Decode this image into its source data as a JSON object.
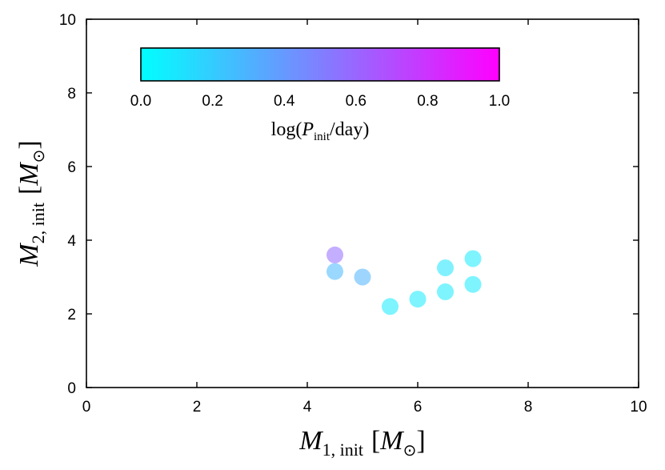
{
  "chart_data": {
    "type": "scatter",
    "title": "",
    "xlabel": {
      "main": "M",
      "sub": "1, init",
      "unit_open": "[",
      "unit_symbol": "M",
      "unit_sub": "⊙",
      "unit_close": "]"
    },
    "ylabel": {
      "main": "M",
      "sub": "2, init",
      "unit_open": "[",
      "unit_symbol": "M",
      "unit_sub": "⊙",
      "unit_close": "]"
    },
    "xlim": [
      0,
      10
    ],
    "ylim": [
      0,
      10
    ],
    "xticks": [
      0,
      2,
      4,
      6,
      8,
      10
    ],
    "xtick_labels": [
      "0",
      "2",
      "4",
      "6",
      "8",
      "10"
    ],
    "yticks": [
      0,
      2,
      4,
      6,
      8,
      10
    ],
    "ytick_labels": [
      "0",
      "2",
      "4",
      "6",
      "8",
      "10"
    ],
    "grid": false,
    "colorbar": {
      "label_prefix": "log(",
      "label_var": "P",
      "label_sub": "init",
      "label_suffix": "/day)",
      "range": [
        0.0,
        1.0
      ],
      "ticks": [
        0.0,
        0.2,
        0.4,
        0.6,
        0.8,
        1.0
      ],
      "tick_labels": [
        "0.0",
        "0.2",
        "0.4",
        "0.6",
        "0.8",
        "1.0"
      ],
      "color_low": "#00ffff",
      "color_high": "#ff00ff",
      "placement": "top-left-inside"
    },
    "points": [
      {
        "x": 4.5,
        "y": 3.6,
        "c": 0.58
      },
      {
        "x": 4.5,
        "y": 3.15,
        "c": 0.28
      },
      {
        "x": 5.0,
        "y": 3.0,
        "c": 0.3
      },
      {
        "x": 5.5,
        "y": 2.2,
        "c": 0.08
      },
      {
        "x": 6.0,
        "y": 2.4,
        "c": 0.08
      },
      {
        "x": 6.5,
        "y": 3.25,
        "c": 0.1
      },
      {
        "x": 6.5,
        "y": 2.6,
        "c": 0.08
      },
      {
        "x": 7.0,
        "y": 3.5,
        "c": 0.08
      },
      {
        "x": 7.0,
        "y": 2.8,
        "c": 0.08
      }
    ],
    "point_alpha": 0.55
  }
}
